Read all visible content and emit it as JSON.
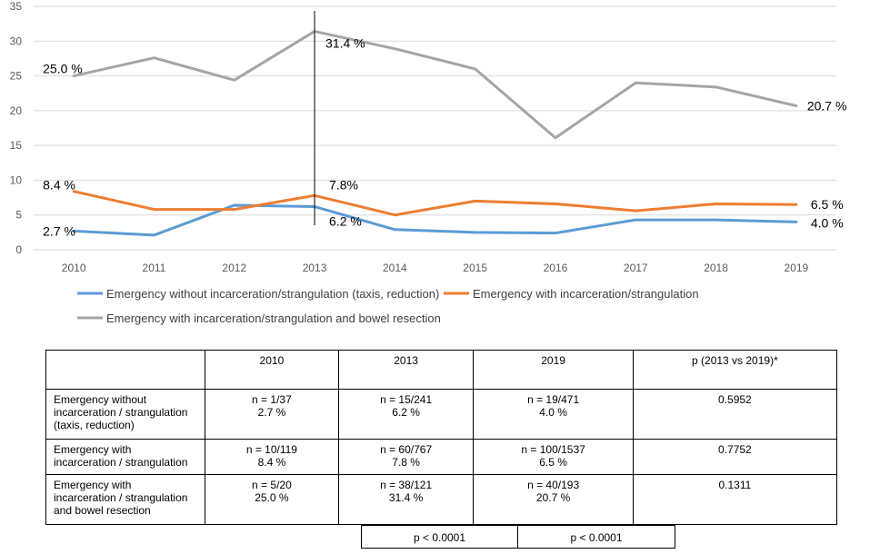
{
  "chart_data": {
    "type": "line",
    "x": [
      "2010",
      "2011",
      "2012",
      "2013",
      "2014",
      "2015",
      "2016",
      "2017",
      "2018",
      "2019"
    ],
    "ylim": [
      0,
      35
    ],
    "yticks": [
      0,
      5,
      10,
      15,
      20,
      25,
      30,
      35
    ],
    "vertical_marker_x": "2013",
    "grid": true,
    "legend_position": "bottom",
    "series": [
      {
        "name": "Emergency without incarceration/strangulation (taxis, reduction)",
        "color": "#5B9BD5",
        "values": [
          2.7,
          2.1,
          6.4,
          6.2,
          2.9,
          2.5,
          2.4,
          4.3,
          4.3,
          4.0
        ],
        "labels": [
          {
            "index": 0,
            "text": "2.7 %"
          },
          {
            "index": 3,
            "text": "6.2 %"
          },
          {
            "index": 9,
            "text": "4.0 %"
          }
        ]
      },
      {
        "name": "Emergency with incarceration/strangulation",
        "color": "#ED7D31",
        "values": [
          8.4,
          5.8,
          5.8,
          7.8,
          5.0,
          7.0,
          6.6,
          5.6,
          6.6,
          6.5
        ],
        "labels": [
          {
            "index": 0,
            "text": "8.4 %"
          },
          {
            "index": 3,
            "text": "7.8%"
          },
          {
            "index": 9,
            "text": "6.5 %"
          }
        ]
      },
      {
        "name": "Emergency with incarceration/strangulation and bowel resection",
        "color": "#A5A5A5",
        "values": [
          25.0,
          27.6,
          24.4,
          31.4,
          28.9,
          26.0,
          16.1,
          24.0,
          23.4,
          20.7
        ],
        "labels": [
          {
            "index": 0,
            "text": "25.0 %"
          },
          {
            "index": 3,
            "text": "31.4 %"
          },
          {
            "index": 9,
            "text": "20.7 %"
          }
        ]
      }
    ]
  },
  "table": {
    "headers": [
      "",
      "2010",
      "2013",
      "2019",
      "p (2013 vs 2019)*"
    ],
    "rows": [
      {
        "label": "Emergency without incarceration / strangulation (taxis, reduction)",
        "label_lines": [
          "Emergency without",
          "incarceration / strangulation",
          "(taxis, reduction)"
        ],
        "cells": [
          [
            "n = 1/37",
            "2.7 %"
          ],
          [
            "n = 15/241",
            "6.2 %"
          ],
          [
            "n = 19/471",
            "4.0 %"
          ]
        ],
        "p": "0.5952"
      },
      {
        "label": "Emergency with incarceration / strangulation",
        "label_lines": [
          "Emergency with",
          "incarceration / strangulation"
        ],
        "cells": [
          [
            "n = 10/119",
            "8.4 %"
          ],
          [
            "n = 60/767",
            "7.8 %"
          ],
          [
            "n = 100/1537",
            "6.5 %"
          ]
        ],
        "p": "0.7752"
      },
      {
        "label": "Emergency with incarceration / strangulation and bowel resection",
        "label_lines": [
          "Emergency with",
          "incarceration / strangulation",
          "and bowel resection"
        ],
        "cells": [
          [
            "n = 5/20",
            "25.0 %"
          ],
          [
            "n = 38/121",
            "31.4 %"
          ],
          [
            "n = 40/193",
            "20.7 %"
          ]
        ],
        "p": "0.1311"
      }
    ],
    "footer_p": [
      "p < 0.0001",
      "p < 0.0001"
    ]
  }
}
